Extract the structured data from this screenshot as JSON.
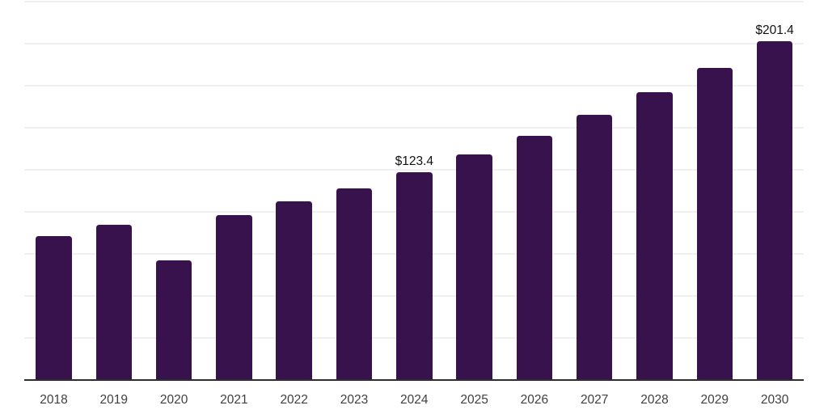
{
  "chart_data": {
    "type": "bar",
    "title": "",
    "xlabel": "",
    "ylabel": "",
    "categories": [
      "2018",
      "2019",
      "2020",
      "2021",
      "2022",
      "2023",
      "2024",
      "2025",
      "2026",
      "2027",
      "2028",
      "2029",
      "2030"
    ],
    "values": [
      85.6,
      92.4,
      71.2,
      98.1,
      106.3,
      114.0,
      123.4,
      133.9,
      145.3,
      157.6,
      171.0,
      185.5,
      201.4
    ],
    "data_labels": [
      {
        "category": "2024",
        "text": "$123.4"
      },
      {
        "category": "2030",
        "text": "$201.4"
      }
    ],
    "ylim": [
      0,
      225
    ],
    "gridline_step": 25,
    "grid": "horizontal",
    "legend": "none",
    "colors": {
      "bar": "#38124d",
      "gridline": "#f0f0f3",
      "axis_line": "#2e2e2e",
      "tick_label": "#404040",
      "data_label": "#111111",
      "background": "#ffffff"
    }
  }
}
